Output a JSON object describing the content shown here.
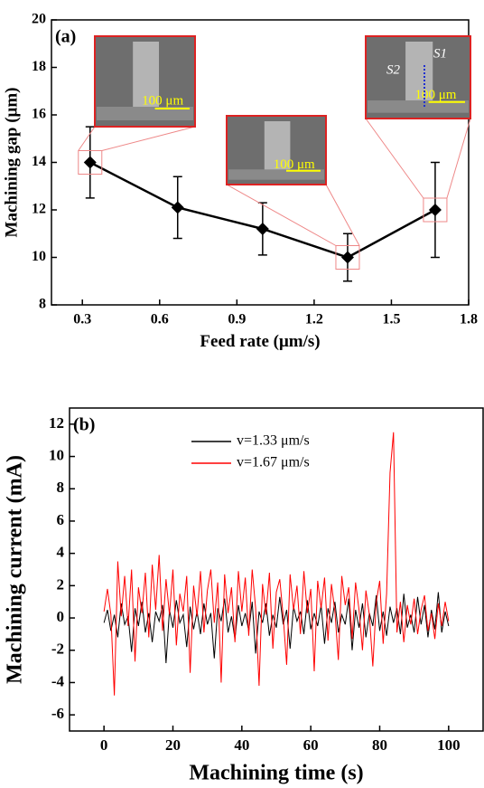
{
  "chart_data": [
    {
      "type": "line",
      "panel_label": "(a)",
      "x_label": "Feed rate (μm/s)",
      "y_label": "Machining gap (μm)",
      "x": [
        0.33,
        0.67,
        1.0,
        1.33,
        1.67
      ],
      "series": [
        {
          "color": "#000000",
          "values": [
            14,
            12.1,
            11.2,
            10,
            12
          ],
          "errors": [
            1.5,
            1.3,
            1.1,
            1.0,
            2.0
          ]
        }
      ],
      "xlim": [
        0.18,
        1.8
      ],
      "xticks": [
        0.3,
        0.6,
        0.9,
        1.2,
        1.5,
        1.8
      ],
      "ylim": [
        8,
        20
      ],
      "yticks": [
        8,
        10,
        12,
        14,
        16,
        18,
        20
      ],
      "insets": [
        {
          "scale_label": "100 μm"
        },
        {
          "scale_label": "100 μm"
        },
        {
          "scale_label": "100 μm"
        }
      ],
      "annotations": [
        "S2",
        "S1"
      ]
    },
    {
      "type": "line",
      "panel_label": "(b)",
      "x_label": "Machining time (s)",
      "y_label": "Machining current (mA)",
      "x": [
        0,
        1,
        2,
        3,
        4,
        5,
        6,
        7,
        8,
        9,
        10,
        11,
        12,
        13,
        14,
        15,
        16,
        17,
        18,
        19,
        20,
        21,
        22,
        23,
        24,
        25,
        26,
        27,
        28,
        29,
        30,
        31,
        32,
        33,
        34,
        35,
        36,
        37,
        38,
        39,
        40,
        41,
        42,
        43,
        44,
        45,
        46,
        47,
        48,
        49,
        50,
        51,
        52,
        53,
        54,
        55,
        56,
        57,
        58,
        59,
        60,
        61,
        62,
        63,
        64,
        65,
        66,
        67,
        68,
        69,
        70,
        71,
        72,
        73,
        74,
        75,
        76,
        77,
        78,
        79,
        80,
        81,
        82,
        83,
        84,
        85,
        86,
        87,
        88,
        89,
        90,
        91,
        92,
        93,
        94,
        95,
        96,
        97,
        98,
        99,
        100
      ],
      "series": [
        {
          "name": "v=1.33 μm/s",
          "color": "#000000",
          "values": [
            -0.3,
            0.5,
            -0.8,
            0.2,
            -1.2,
            0.9,
            -0.4,
            0.1,
            -2.1,
            0.6,
            -0.5,
            1.0,
            -0.9,
            0.3,
            -1.5,
            0.4,
            -0.2,
            0.8,
            -2.8,
            0.5,
            -0.6,
            1.1,
            -0.3,
            0.2,
            -1.8,
            0.7,
            -0.7,
            0.4,
            -1.0,
            0.9,
            -0.4,
            0.3,
            -2.5,
            0.6,
            -0.2,
            1.2,
            -0.9,
            0.1,
            -1.3,
            0.8,
            -0.5,
            0.3,
            -0.8,
            1.0,
            -2.2,
            0.4,
            -0.3,
            0.9,
            -1.1,
            0.2,
            -0.6,
            1.3,
            -0.4,
            0.5,
            -1.9,
            0.7,
            -0.2,
            0.4,
            -1.0,
            1.1,
            -0.7,
            0.3,
            -0.5,
            0.8,
            -1.6,
            0.6,
            -0.3,
            1.0,
            -0.9,
            0.2,
            -0.4,
            1.2,
            -2.0,
            0.5,
            -0.6,
            0.9,
            -1.2,
            0.3,
            -0.5,
            1.4,
            -0.8,
            0.4,
            -1.1,
            0.7,
            -0.3,
            0.6,
            -1.0,
            1.5,
            -0.6,
            0.2,
            -0.9,
            1.3,
            -0.4,
            0.8,
            -1.2,
            0.5,
            -0.7,
            1.6,
            -0.9,
            0.4,
            -0.5
          ]
        },
        {
          "name": "v=1.67 μm/s",
          "color": "#ff0000",
          "values": [
            0.4,
            1.8,
            0.2,
            -4.8,
            3.5,
            0.1,
            2.6,
            -0.5,
            3.0,
            -2.7,
            1.9,
            0.3,
            2.8,
            -1.2,
            3.3,
            0.5,
            3.9,
            -0.8,
            2.4,
            0.2,
            3.0,
            -1.7,
            1.5,
            0.4,
            2.6,
            -3.4,
            2.0,
            0.1,
            2.9,
            -0.9,
            1.7,
            3.0,
            -0.3,
            2.2,
            -4.0,
            2.7,
            0.3,
            1.9,
            -1.5,
            2.9,
            0.4,
            2.5,
            -1.1,
            3.0,
            0.6,
            -4.2,
            2.1,
            0.2,
            2.8,
            -1.9,
            1.6,
            2.4,
            0.1,
            -2.9,
            2.7,
            0.5,
            2.0,
            -1.0,
            2.9,
            0.3,
            1.8,
            -3.3,
            2.3,
            0.6,
            2.5,
            -1.4,
            2.1,
            0.4,
            -2.6,
            2.6,
            0.8,
            1.9,
            -1.3,
            2.2,
            0.5,
            -2.0,
            1.7,
            0.2,
            -3.0,
            1.0,
            2.3,
            -1.6,
            1.5,
            9.0,
            11.5,
            -0.9,
            1.0,
            -1.5,
            0.8,
            -0.4,
            1.2,
            -1.0,
            0.5,
            1.4,
            -0.8,
            0.3,
            -1.3,
            0.9,
            -0.5,
            1.0,
            -0.2
          ]
        }
      ],
      "xlim": [
        -10,
        110
      ],
      "xticks": [
        0,
        20,
        40,
        60,
        80,
        100
      ],
      "ylim": [
        -7,
        13
      ],
      "yticks": [
        -6,
        -4,
        -2,
        0,
        2,
        4,
        6,
        8,
        10,
        12
      ]
    }
  ]
}
